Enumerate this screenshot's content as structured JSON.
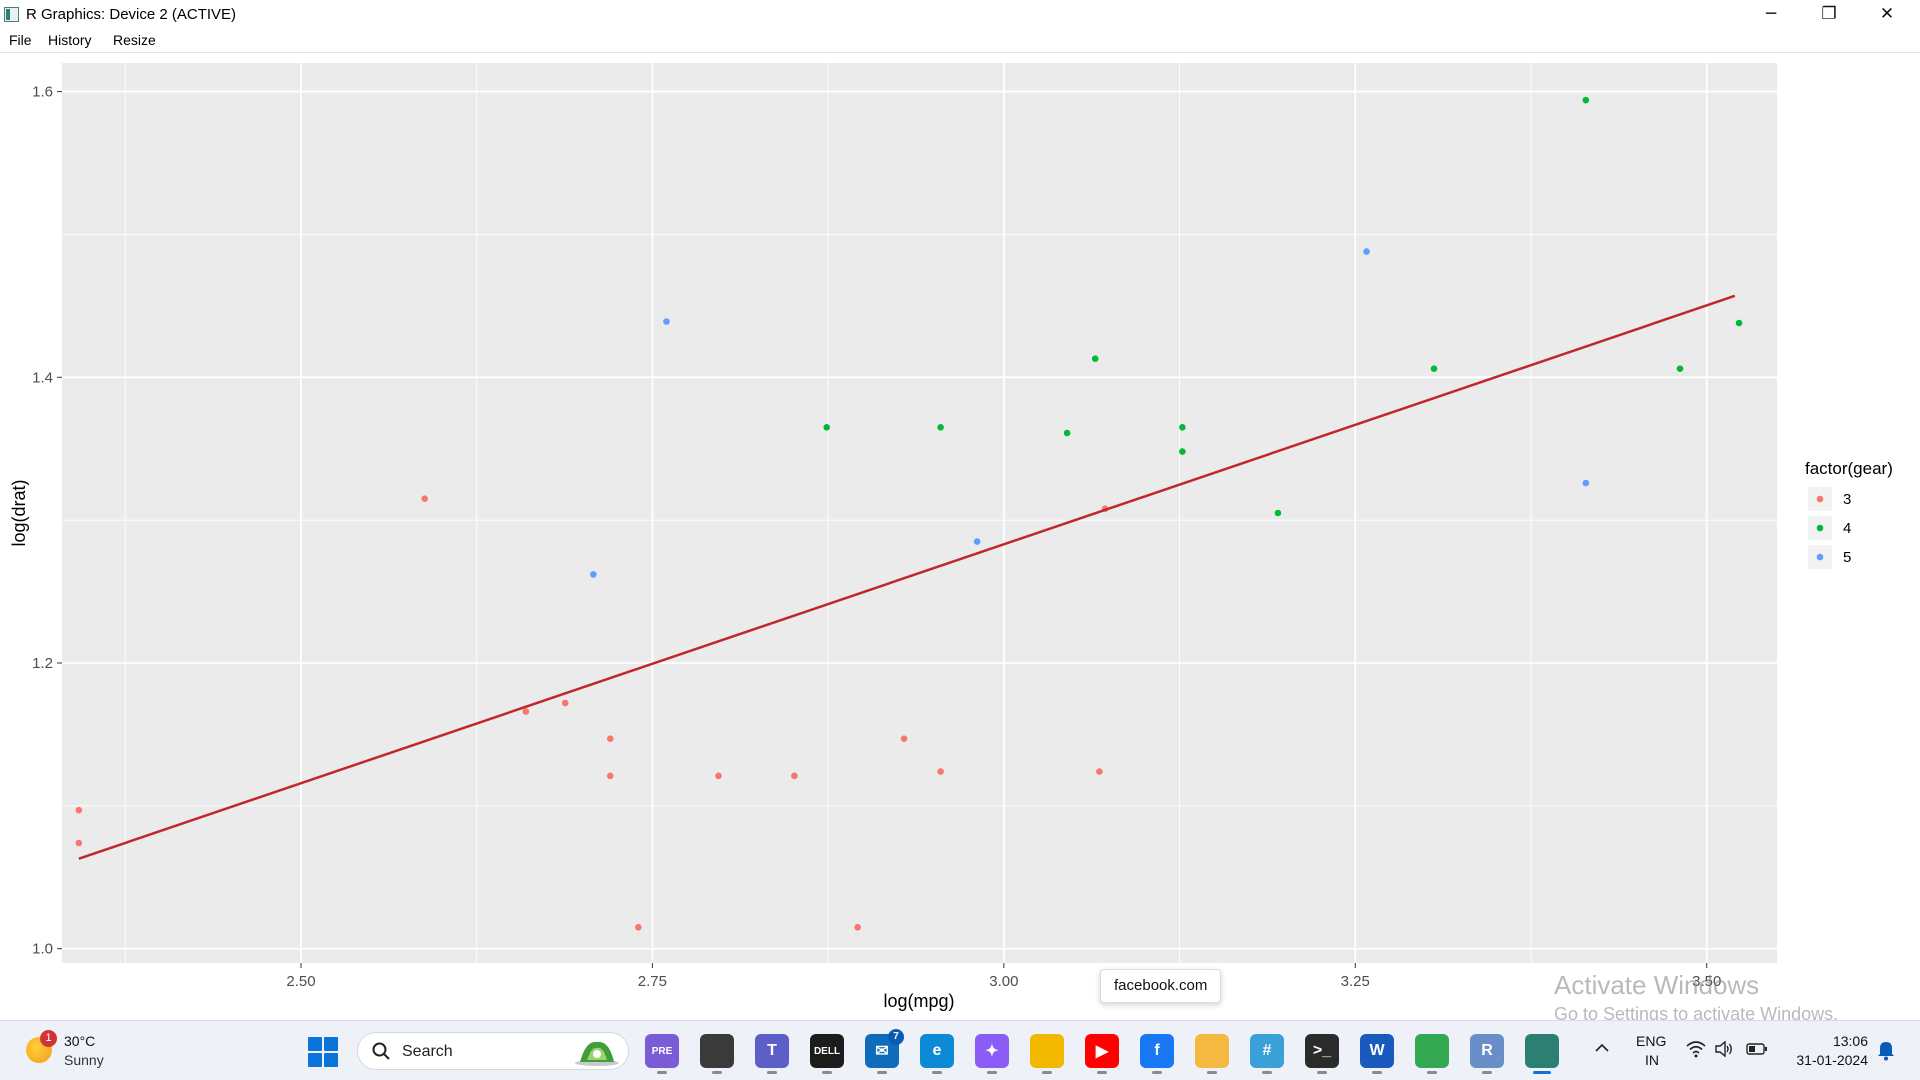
{
  "window": {
    "title": "R Graphics: Device 2 (ACTIVE)",
    "controls": {
      "minimize": "─",
      "restore": "❐",
      "close": "✕"
    }
  },
  "menu": {
    "file": "File",
    "history": "History",
    "resize": "Resize"
  },
  "chart_data": {
    "type": "scatter",
    "xlabel": "log(mpg)",
    "ylabel": "log(drat)",
    "xlim": [
      2.33,
      3.55
    ],
    "ylim": [
      0.99,
      1.62
    ],
    "x_ticks": [
      2.5,
      2.75,
      3.0,
      3.25,
      3.5
    ],
    "x_tick_labels": [
      "2.50",
      "2.75",
      "3.00",
      "3.25",
      "3.50"
    ],
    "y_ticks": [
      1.0,
      1.2,
      1.4,
      1.6
    ],
    "y_tick_labels": [
      "1.0",
      "1.2",
      "1.4",
      "1.6"
    ],
    "grid": true,
    "legend": {
      "title": "factor(gear)",
      "placement": "right"
    },
    "series": [
      {
        "name": "3",
        "color": "#F8766D",
        "points": [
          [
            2.342,
            1.097
          ],
          [
            2.342,
            1.074
          ],
          [
            2.588,
            1.315
          ],
          [
            2.66,
            1.166
          ],
          [
            2.688,
            1.172
          ],
          [
            2.72,
            1.147
          ],
          [
            2.72,
            1.121
          ],
          [
            2.74,
            1.015
          ],
          [
            2.797,
            1.121
          ],
          [
            2.851,
            1.121
          ],
          [
            2.896,
            1.015
          ],
          [
            2.929,
            1.147
          ],
          [
            2.955,
            1.124
          ],
          [
            3.068,
            1.124
          ],
          [
            3.072,
            1.308
          ]
        ]
      },
      {
        "name": "4",
        "color": "#00BA38",
        "points": [
          [
            2.874,
            1.365
          ],
          [
            2.955,
            1.365
          ],
          [
            3.045,
            1.361
          ],
          [
            3.065,
            1.413
          ],
          [
            3.127,
            1.365
          ],
          [
            3.127,
            1.348
          ],
          [
            3.195,
            1.305
          ],
          [
            3.306,
            1.406
          ],
          [
            3.414,
            1.594
          ],
          [
            3.481,
            1.406
          ],
          [
            3.523,
            1.438
          ]
        ]
      },
      {
        "name": "5",
        "color": "#619CFF",
        "points": [
          [
            2.708,
            1.262
          ],
          [
            2.76,
            1.439
          ],
          [
            2.981,
            1.285
          ],
          [
            3.258,
            1.488
          ],
          [
            3.414,
            1.326
          ]
        ]
      }
    ],
    "fit_line": {
      "color": "#C0262C",
      "points": [
        [
          2.342,
          1.063
        ],
        [
          3.52,
          1.457
        ]
      ]
    }
  },
  "watermark": {
    "line1": "Activate Windows",
    "line2": "Go to Settings to activate Windows."
  },
  "tooltip": "facebook.com",
  "taskbar": {
    "weather": {
      "temp": "30°C",
      "desc": "Sunny",
      "badge": "1"
    },
    "search_label": "Search",
    "apps": [
      {
        "name": "copilot-pre",
        "label": "PRE",
        "color": "#7a5cd6"
      },
      {
        "name": "task-view",
        "label": "",
        "color": "#3a3a3a"
      },
      {
        "name": "teams",
        "label": "T",
        "color": "#5b5fc7"
      },
      {
        "name": "dell",
        "label": "DELL",
        "color": "#1c1c1c"
      },
      {
        "name": "mail",
        "label": "✉",
        "color": "#0f6cbd",
        "badge": "7"
      },
      {
        "name": "edge",
        "label": "e",
        "color": "#0c8ad6"
      },
      {
        "name": "copilot",
        "label": "✦",
        "color": "#8b5cf6"
      },
      {
        "name": "file-explorer",
        "label": "",
        "color": "#f2b800"
      },
      {
        "name": "youtube",
        "label": "▶",
        "color": "#ff0000"
      },
      {
        "name": "facebook",
        "label": "f",
        "color": "#1877f2"
      },
      {
        "name": "pinned-app",
        "label": "",
        "color": "#f5b942"
      },
      {
        "name": "snipping-tool",
        "label": "#",
        "color": "#3aa0d8"
      },
      {
        "name": "terminal",
        "label": ">_",
        "color": "#2b2b2b"
      },
      {
        "name": "word",
        "label": "W",
        "color": "#185abd"
      },
      {
        "name": "chrome",
        "label": "",
        "color": "#34a853"
      },
      {
        "name": "r-app",
        "label": "R",
        "color": "#6a8fc8"
      },
      {
        "name": "r-graphics",
        "label": "",
        "color": "#2d7f73"
      }
    ],
    "tray": {
      "lang1": "ENG",
      "lang2": "IN",
      "time": "13:06",
      "date": "31-01-2024"
    }
  }
}
